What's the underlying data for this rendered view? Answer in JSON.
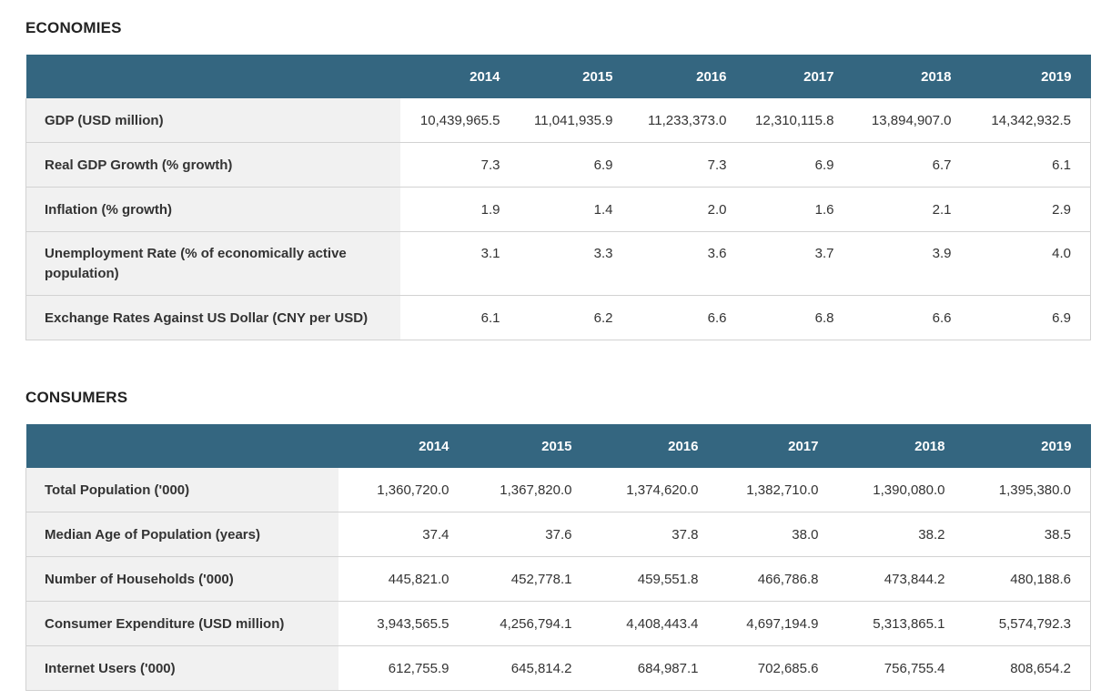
{
  "sections": [
    {
      "title": "ECONOMIES",
      "years": [
        "2014",
        "2015",
        "2016",
        "2017",
        "2018",
        "2019"
      ],
      "rows": [
        {
          "label": "GDP (USD million)",
          "values": [
            "10,439,965.5",
            "11,041,935.9",
            "11,233,373.0",
            "12,310,115.8",
            "13,894,907.0",
            "14,342,932.5"
          ]
        },
        {
          "label": "Real GDP Growth (% growth)",
          "values": [
            "7.3",
            "6.9",
            "7.3",
            "6.9",
            "6.7",
            "6.1"
          ]
        },
        {
          "label": "Inflation (% growth)",
          "values": [
            "1.9",
            "1.4",
            "2.0",
            "1.6",
            "2.1",
            "2.9"
          ]
        },
        {
          "label": "Unemployment Rate (% of economically active population)",
          "values": [
            "3.1",
            "3.3",
            "3.6",
            "3.7",
            "3.9",
            "4.0"
          ]
        },
        {
          "label": "Exchange Rates Against US Dollar (CNY per USD)",
          "values": [
            "6.1",
            "6.2",
            "6.6",
            "6.8",
            "6.6",
            "6.9"
          ]
        }
      ]
    },
    {
      "title": "CONSUMERS",
      "years": [
        "2014",
        "2015",
        "2016",
        "2017",
        "2018",
        "2019"
      ],
      "rows": [
        {
          "label": "Total Population ('000)",
          "values": [
            "1,360,720.0",
            "1,367,820.0",
            "1,374,620.0",
            "1,382,710.0",
            "1,390,080.0",
            "1,395,380.0"
          ]
        },
        {
          "label": "Median Age of Population (years)",
          "values": [
            "37.4",
            "37.6",
            "37.8",
            "38.0",
            "38.2",
            "38.5"
          ]
        },
        {
          "label": "Number of Households ('000)",
          "values": [
            "445,821.0",
            "452,778.1",
            "459,551.8",
            "466,786.8",
            "473,844.2",
            "480,188.6"
          ]
        },
        {
          "label": "Consumer Expenditure (USD million)",
          "values": [
            "3,943,565.5",
            "4,256,794.1",
            "4,408,443.4",
            "4,697,194.9",
            "5,313,865.1",
            "5,574,792.3"
          ]
        },
        {
          "label": "Internet Users ('000)",
          "values": [
            "612,755.9",
            "645,814.2",
            "684,987.1",
            "702,685.6",
            "756,755.4",
            "808,654.2"
          ]
        }
      ]
    }
  ]
}
